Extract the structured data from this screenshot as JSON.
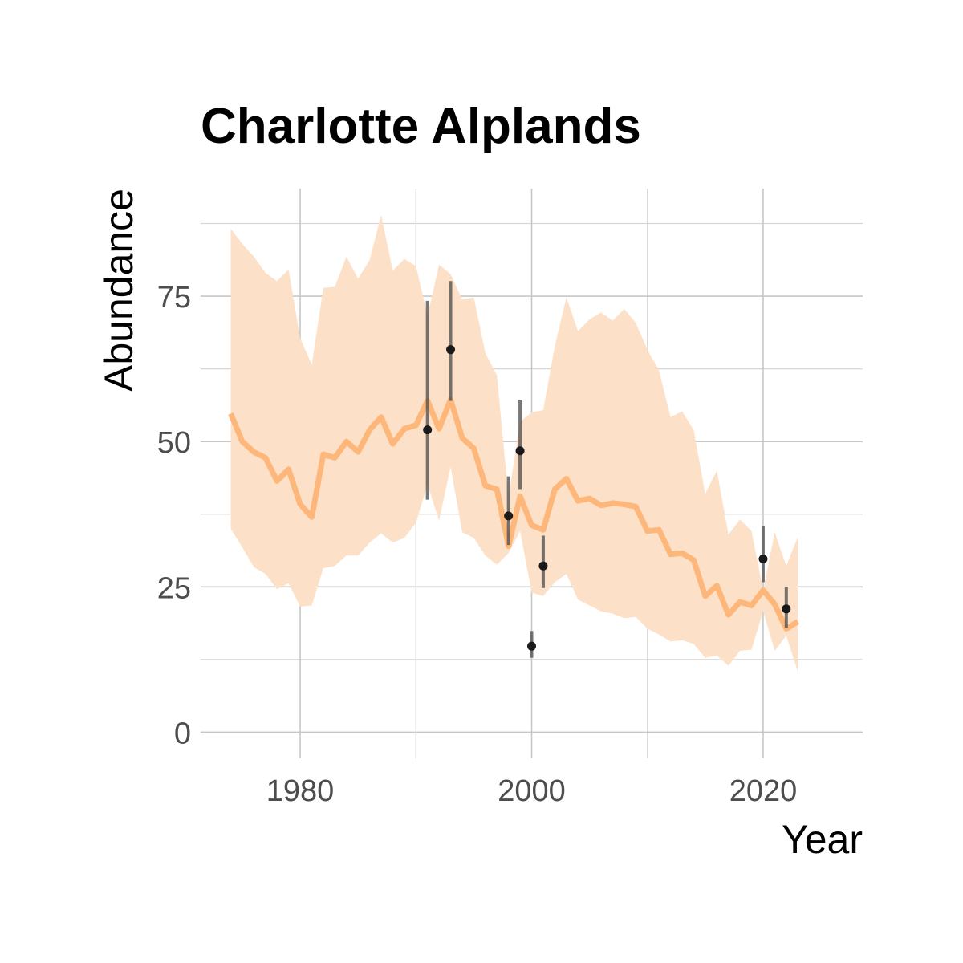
{
  "chart_data": {
    "type": "line",
    "title": "Charlotte Alplands",
    "xlabel": "Year",
    "ylabel": "Abundance",
    "xlim": [
      1971.4,
      2028.6
    ],
    "ylim": [
      -4.5,
      93.5
    ],
    "x_ticks": [
      1980,
      2000,
      2020
    ],
    "y_ticks": [
      0,
      25,
      50,
      75
    ],
    "grid": true,
    "legend": "none",
    "colors": {
      "trend": "#fdb77a",
      "band": "#fce1c8",
      "observed": "#1a1a1a",
      "error_bar": "#4a4a4a"
    },
    "series": [
      {
        "role": "trend",
        "x": [
          1974,
          1975,
          1976,
          1977,
          1978,
          1979,
          1980,
          1981,
          1982,
          1983,
          1984,
          1985,
          1986,
          1987,
          1988,
          1989,
          1990,
          1991,
          1992,
          1993,
          1994,
          1995,
          1996,
          1997,
          1998,
          1999,
          2000,
          2001,
          2002,
          2003,
          2004,
          2005,
          2006,
          2007,
          2008,
          2009,
          2010,
          2011,
          2012,
          2013,
          2014,
          2015,
          2016,
          2017,
          2018,
          2019,
          2020,
          2021,
          2022,
          2023
        ],
        "y": [
          54.8,
          50.0,
          48.2,
          47.2,
          43.2,
          45.2,
          39.2,
          37.0,
          47.8,
          47.2,
          50.0,
          48.2,
          52.0,
          54.2,
          49.6,
          52.2,
          52.8,
          57.0,
          52.2,
          57.2,
          50.6,
          48.8,
          42.4,
          41.8,
          32.0,
          40.6,
          35.6,
          34.8,
          41.8,
          43.6,
          39.8,
          40.2,
          39.0,
          39.4,
          39.2,
          38.8,
          34.6,
          34.8,
          30.6,
          30.8,
          29.6,
          23.4,
          25.2,
          20.2,
          22.4,
          21.8,
          24.4,
          22.0,
          17.8,
          19.0
        ]
      },
      {
        "role": "interval",
        "x": [
          1974,
          1975,
          1976,
          1977,
          1978,
          1979,
          1980,
          1981,
          1982,
          1983,
          1984,
          1985,
          1986,
          1987,
          1988,
          1989,
          1990,
          1991,
          1992,
          1993,
          1994,
          1995,
          1996,
          1997,
          1998,
          1999,
          2000,
          2001,
          2002,
          2003,
          2004,
          2005,
          2006,
          2007,
          2008,
          2009,
          2010,
          2011,
          2012,
          2013,
          2014,
          2015,
          2016,
          2017,
          2018,
          2019,
          2020,
          2021,
          2022,
          2023
        ],
        "upper": [
          86.6,
          84.0,
          81.8,
          79.0,
          77.6,
          79.6,
          67.8,
          63.2,
          76.4,
          76.6,
          81.8,
          78.0,
          81.2,
          89.0,
          79.4,
          81.4,
          80.2,
          71.6,
          80.4,
          78.8,
          74.4,
          74.8,
          65.2,
          61.4,
          40.4,
          53.4,
          55.0,
          55.4,
          66.4,
          74.8,
          69.0,
          71.0,
          72.2,
          70.8,
          72.8,
          70.4,
          65.8,
          62.2,
          54.2,
          55.2,
          52.0,
          41.0,
          45.0,
          34.0,
          36.6,
          34.6,
          24.4,
          34.4,
          28.6,
          33.6
        ],
        "lower": [
          35.0,
          31.8,
          28.4,
          27.2,
          24.6,
          25.6,
          21.6,
          21.8,
          28.2,
          28.6,
          30.4,
          30.4,
          32.6,
          34.2,
          32.6,
          33.4,
          36.0,
          42.6,
          36.4,
          45.6,
          34.4,
          33.4,
          30.4,
          28.8,
          30.8,
          34.6,
          24.0,
          23.4,
          25.8,
          27.2,
          22.8,
          21.8,
          20.8,
          20.4,
          19.6,
          19.8,
          17.8,
          16.8,
          15.6,
          15.8,
          15.2,
          12.8,
          13.2,
          11.4,
          14.0,
          14.2,
          20.8,
          14.0,
          16.6,
          10.4
        ]
      },
      {
        "role": "observed",
        "x": [
          1991,
          1993,
          1998,
          1999,
          2000,
          2001,
          2020,
          2022
        ],
        "y": [
          52.0,
          65.8,
          37.2,
          48.4,
          14.8,
          28.6,
          29.8,
          21.2
        ],
        "lower": [
          40.0,
          57.0,
          32.2,
          41.8,
          12.8,
          24.8,
          25.8,
          18.0
        ],
        "upper": [
          74.2,
          77.6,
          44.0,
          57.2,
          17.4,
          33.8,
          35.4,
          25.0
        ]
      }
    ]
  }
}
